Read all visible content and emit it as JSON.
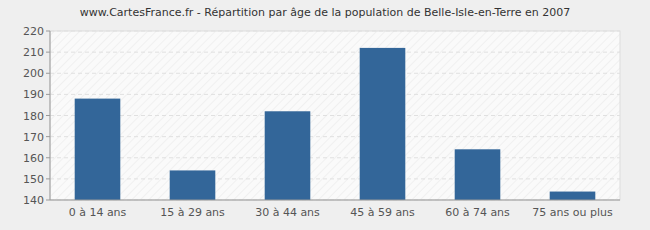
{
  "chart_data": {
    "type": "bar",
    "title": "www.CartesFrance.fr - Répartition par âge de la population de Belle-Isle-en-Terre en 2007",
    "categories": [
      "0 à 14 ans",
      "15 à 29 ans",
      "30 à 44 ans",
      "45 à 59 ans",
      "60 à 74 ans",
      "75 ans ou plus"
    ],
    "values": [
      188,
      154,
      182,
      212,
      164,
      144
    ],
    "color": "#336699",
    "ylim": [
      140,
      220
    ],
    "yticks": [
      140,
      150,
      160,
      170,
      180,
      190,
      200,
      210,
      220
    ],
    "grid": true
  }
}
